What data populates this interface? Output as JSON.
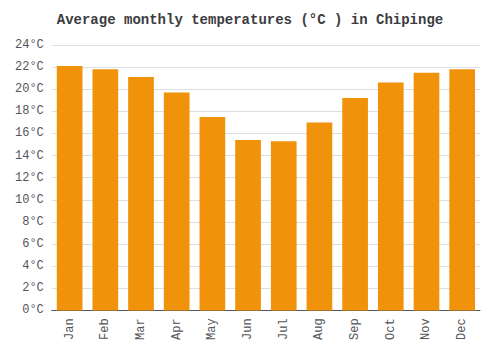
{
  "chart_data": {
    "type": "bar",
    "title": "Average monthly temperatures (°C ) in Chipinge",
    "categories": [
      "Jan",
      "Feb",
      "Mar",
      "Apr",
      "May",
      "Jun",
      "Jul",
      "Aug",
      "Sep",
      "Oct",
      "Nov",
      "Dec"
    ],
    "values": [
      22.1,
      21.8,
      21.1,
      19.7,
      17.5,
      15.4,
      15.3,
      17.0,
      19.2,
      20.6,
      21.5,
      21.8
    ],
    "color": "#F0920A",
    "ylim": [
      0,
      24
    ],
    "yticks": [
      {
        "value": 0,
        "label": "0°C"
      },
      {
        "value": 2,
        "label": "2°C"
      },
      {
        "value": 4,
        "label": "4°C"
      },
      {
        "value": 6,
        "label": "6°C"
      },
      {
        "value": 8,
        "label": "8°C"
      },
      {
        "value": 10,
        "label": "10°C"
      },
      {
        "value": 12,
        "label": "12°C"
      },
      {
        "value": 14,
        "label": "14°C"
      },
      {
        "value": 16,
        "label": "16°C"
      },
      {
        "value": 18,
        "label": "18°C"
      },
      {
        "value": 20,
        "label": "20°C"
      },
      {
        "value": 22,
        "label": "22°C"
      },
      {
        "value": 24,
        "label": "24°C"
      }
    ],
    "grid": true
  }
}
